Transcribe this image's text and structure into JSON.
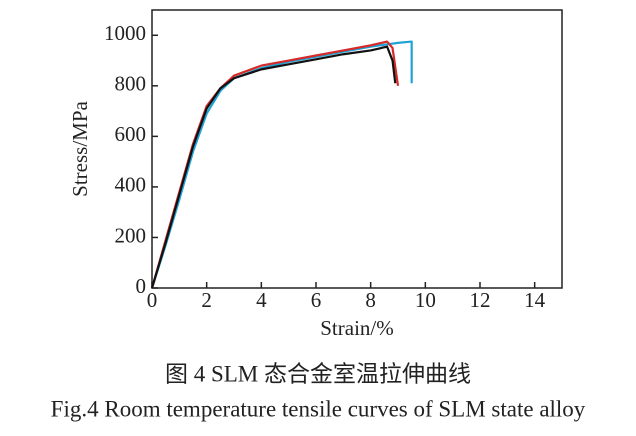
{
  "chart_data": {
    "type": "line",
    "xlabel": "Strain/%",
    "ylabel": "Stress/MPa",
    "xlim": [
      0,
      15
    ],
    "xticks": [
      0,
      2,
      4,
      6,
      8,
      10,
      12,
      14
    ],
    "ylim": [
      0,
      1100
    ],
    "yticks": [
      0,
      200,
      400,
      600,
      800,
      1000
    ],
    "series": [
      {
        "color": "#1fa3d6",
        "x": [
          0,
          0.5,
          1,
          1.5,
          2,
          2.5,
          3,
          4,
          5,
          6,
          7,
          8,
          9,
          9.5,
          9.5
        ],
        "values": [
          0,
          170,
          350,
          540,
          690,
          780,
          830,
          870,
          895,
          915,
          935,
          955,
          970,
          975,
          810
        ]
      },
      {
        "color": "#d62a2a",
        "x": [
          0,
          0.5,
          1,
          1.5,
          2,
          2.5,
          3,
          4,
          5,
          6,
          7,
          8,
          8.6,
          8.8,
          9
        ],
        "values": [
          0,
          190,
          380,
          570,
          720,
          790,
          840,
          880,
          900,
          920,
          940,
          960,
          975,
          950,
          800
        ]
      },
      {
        "color": "#111111",
        "x": [
          0,
          0.5,
          1,
          1.5,
          2,
          2.5,
          3,
          4,
          5,
          6,
          7,
          8,
          8.6,
          8.8,
          8.9
        ],
        "values": [
          0,
          180,
          370,
          560,
          710,
          790,
          830,
          865,
          885,
          905,
          925,
          940,
          955,
          900,
          810
        ]
      }
    ],
    "caption_cn": "图 4 SLM 态合金室温拉伸曲线",
    "caption_en": "Fig.4 Room temperature tensile curves of SLM state alloy"
  }
}
